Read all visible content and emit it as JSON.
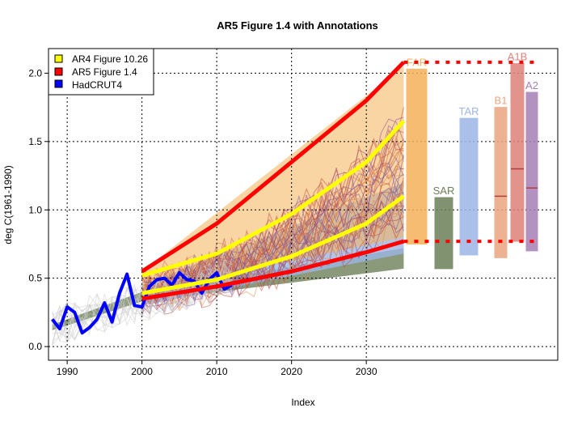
{
  "chart_data": {
    "type": "line",
    "title": "AR5 Figure 1.4 with Annotations",
    "xlabel": "Index",
    "ylabel": "deg C(1961-1990)",
    "xlim": [
      1987.5,
      2055.6
    ],
    "ylim": [
      -0.1,
      2.18
    ],
    "x_ticks": [
      1990,
      2000,
      2010,
      2020,
      2030
    ],
    "y_ticks": [
      "0.0",
      "0.5",
      "1.0",
      "1.5",
      "2.0"
    ],
    "grid": true,
    "legend_position": "top-left",
    "legend": [
      {
        "label": "AR4 Figure 10.26",
        "color": "#ffff00"
      },
      {
        "label": "AR5 Figure 1.4",
        "color": "#ff0000"
      },
      {
        "label": "HadCRUT4",
        "color": "#0000ff"
      }
    ],
    "series": [
      {
        "name": "HadCRUT4",
        "color": "#0000ff",
        "x": [
          1988,
          1989,
          1990,
          1991,
          1992,
          1993,
          1994,
          1995,
          1996,
          1997,
          1998,
          1999,
          2000,
          2001,
          2002,
          2003,
          2004,
          2005,
          2006,
          2007,
          2008,
          2009,
          2010,
          2011,
          2012
        ],
        "y": [
          0.2,
          0.13,
          0.29,
          0.25,
          0.1,
          0.14,
          0.2,
          0.32,
          0.18,
          0.39,
          0.53,
          0.3,
          0.29,
          0.44,
          0.49,
          0.5,
          0.45,
          0.54,
          0.49,
          0.48,
          0.39,
          0.49,
          0.54,
          0.42,
          0.45
        ]
      },
      {
        "name": "AR5 Figure 1.4",
        "color": "#ff0000",
        "x": [
          2000,
          2010,
          2020,
          2030,
          2035
        ],
        "y": [
          0.55,
          0.9,
          1.35,
          1.8,
          2.08
        ]
      },
      {
        "name": "AR5 Figure 1.4",
        "color": "#ff0000",
        "x": [
          2000,
          2010,
          2020,
          2030,
          2035
        ],
        "y": [
          0.35,
          0.44,
          0.55,
          0.69,
          0.77
        ]
      },
      {
        "name": "AR4 Figure 10.26",
        "color": "#ffff00",
        "x": [
          2000,
          2010,
          2020,
          2030,
          2035
        ],
        "y": [
          0.52,
          0.68,
          0.97,
          1.35,
          1.65
        ]
      },
      {
        "name": "AR4 Figure 10.26",
        "color": "#ffff00",
        "x": [
          2000,
          2010,
          2020,
          2030,
          2035
        ],
        "y": [
          0.39,
          0.49,
          0.66,
          0.9,
          1.1
        ]
      }
    ],
    "reference_lines": [
      {
        "y": 2.08,
        "x": [
          2035,
          2053
        ],
        "color": "#ff0000",
        "style": "dotted"
      },
      {
        "y": 0.77,
        "x": [
          2035,
          2053
        ],
        "color": "#ff0000",
        "style": "dotted"
      }
    ],
    "range_bars": [
      {
        "label": "FAR",
        "low": 0.75,
        "high": 2.03,
        "color": "#f5b25a"
      },
      {
        "label": "SAR",
        "low": 0.57,
        "high": 1.09,
        "color": "#6b7f58"
      },
      {
        "label": "TAR",
        "low": 0.67,
        "high": 1.67,
        "color": "#9db6e6"
      },
      {
        "label": "B1",
        "low": 0.65,
        "high": 1.75,
        "mid": 1.1,
        "color": "#eba580"
      },
      {
        "label": "A1B",
        "low": 0.77,
        "high": 2.07,
        "mid": 1.3,
        "color": "#de8278"
      },
      {
        "label": "A2",
        "low": 0.7,
        "high": 1.86,
        "mid": 1.16,
        "color": "#a67fb6"
      }
    ]
  }
}
